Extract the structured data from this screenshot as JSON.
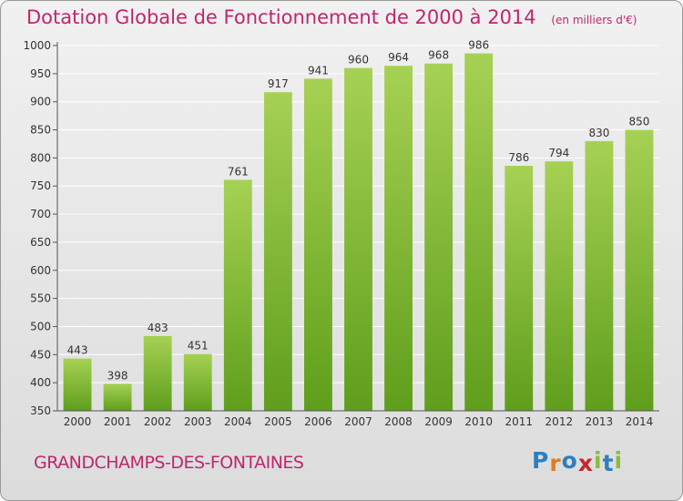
{
  "header": {
    "title": "Dotation Globale de Fonctionnement de 2000 à 2014",
    "unit": "(en milliers d'€)"
  },
  "footer": {
    "commune": "GRANDCHAMPS-DES-FONTAINES",
    "logo_letters": [
      "P",
      "r",
      "o",
      "x",
      "i",
      "t",
      "i"
    ],
    "logo_colors": [
      "#2f7fc0",
      "#e07b22",
      "#2f7fc0",
      "#c62828",
      "#8dbb3c",
      "#2f7fc0",
      "#8dbb3c"
    ]
  },
  "colors": {
    "bar_light": "#a6d154",
    "bar_dark": "#5f9e1c",
    "title": "#c0266c",
    "grid": "#ffffff"
  },
  "chart_data": {
    "type": "bar",
    "title": "Dotation Globale de Fonctionnement de 2000 à 2014",
    "categories": [
      "2000",
      "2001",
      "2002",
      "2003",
      "2004",
      "2005",
      "2006",
      "2007",
      "2008",
      "2009",
      "2010",
      "2011",
      "2012",
      "2013",
      "2014"
    ],
    "values": [
      443,
      398,
      483,
      451,
      761,
      917,
      941,
      960,
      964,
      968,
      986,
      786,
      794,
      830,
      850
    ],
    "ylim": [
      350,
      1000
    ],
    "yticks": [
      350,
      400,
      450,
      500,
      550,
      600,
      650,
      700,
      750,
      800,
      850,
      900,
      950,
      1000
    ],
    "grid": true,
    "data_labels": true
  }
}
